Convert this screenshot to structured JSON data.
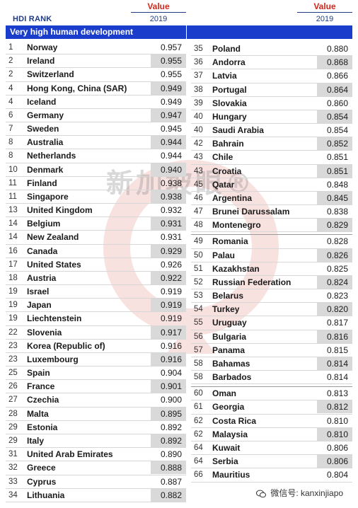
{
  "header": {
    "rank_label": "HDI RANK",
    "value_label": "Value",
    "year_label": "2019"
  },
  "section": {
    "title": "Very high human development"
  },
  "left_rows": [
    {
      "rank": "1",
      "country": "Norway",
      "value": "0.957",
      "shade": false
    },
    {
      "rank": "2",
      "country": "Ireland",
      "value": "0.955",
      "shade": true
    },
    {
      "rank": "2",
      "country": "Switzerland",
      "value": "0.955",
      "shade": false
    },
    {
      "rank": "4",
      "country": "Hong Kong, China (SAR)",
      "value": "0.949",
      "shade": true
    },
    {
      "rank": "4",
      "country": "Iceland",
      "value": "0.949",
      "shade": false
    },
    {
      "rank": "6",
      "country": "Germany",
      "value": "0.947",
      "shade": true
    },
    {
      "rank": "7",
      "country": "Sweden",
      "value": "0.945",
      "shade": false
    },
    {
      "rank": "8",
      "country": "Australia",
      "value": "0.944",
      "shade": true
    },
    {
      "rank": "8",
      "country": "Netherlands",
      "value": "0.944",
      "shade": false
    },
    {
      "rank": "10",
      "country": "Denmark",
      "value": "0.940",
      "shade": true
    },
    {
      "rank": "11",
      "country": "Finland",
      "value": "0.938",
      "shade": false
    },
    {
      "rank": "11",
      "country": "Singapore",
      "value": "0.938",
      "shade": true
    },
    {
      "rank": "13",
      "country": "United Kingdom",
      "value": "0.932",
      "shade": false
    },
    {
      "rank": "14",
      "country": "Belgium",
      "value": "0.931",
      "shade": true
    },
    {
      "rank": "14",
      "country": "New Zealand",
      "value": "0.931",
      "shade": false
    },
    {
      "rank": "16",
      "country": "Canada",
      "value": "0.929",
      "shade": true
    },
    {
      "rank": "17",
      "country": "United States",
      "value": "0.926",
      "shade": false
    },
    {
      "rank": "18",
      "country": "Austria",
      "value": "0.922",
      "shade": true
    },
    {
      "rank": "19",
      "country": "Israel",
      "value": "0.919",
      "shade": false
    },
    {
      "rank": "19",
      "country": "Japan",
      "value": "0.919",
      "shade": true
    },
    {
      "rank": "19",
      "country": "Liechtenstein",
      "value": "0.919",
      "shade": false
    },
    {
      "rank": "22",
      "country": "Slovenia",
      "value": "0.917",
      "shade": true
    },
    {
      "rank": "23",
      "country": "Korea (Republic of)",
      "value": "0.916",
      "shade": false
    },
    {
      "rank": "23",
      "country": "Luxembourg",
      "value": "0.916",
      "shade": true
    },
    {
      "rank": "25",
      "country": "Spain",
      "value": "0.904",
      "shade": false
    },
    {
      "rank": "26",
      "country": "France",
      "value": "0.901",
      "shade": true
    },
    {
      "rank": "27",
      "country": "Czechia",
      "value": "0.900",
      "shade": false
    },
    {
      "rank": "28",
      "country": "Malta",
      "value": "0.895",
      "shade": true
    },
    {
      "rank": "29",
      "country": "Estonia",
      "value": "0.892",
      "shade": false
    },
    {
      "rank": "29",
      "country": "Italy",
      "value": "0.892",
      "shade": true
    },
    {
      "rank": "31",
      "country": "United Arab Emirates",
      "value": "0.890",
      "shade": false
    },
    {
      "rank": "32",
      "country": "Greece",
      "value": "0.888",
      "shade": true
    },
    {
      "rank": "33",
      "country": "Cyprus",
      "value": "0.887",
      "shade": false
    },
    {
      "rank": "34",
      "country": "Lithuania",
      "value": "0.882",
      "shade": true
    }
  ],
  "right_rows_a": [
    {
      "rank": "35",
      "country": "Poland",
      "value": "0.880",
      "shade": false
    },
    {
      "rank": "36",
      "country": "Andorra",
      "value": "0.868",
      "shade": true
    },
    {
      "rank": "37",
      "country": "Latvia",
      "value": "0.866",
      "shade": false
    },
    {
      "rank": "38",
      "country": "Portugal",
      "value": "0.864",
      "shade": true
    },
    {
      "rank": "39",
      "country": "Slovakia",
      "value": "0.860",
      "shade": false
    },
    {
      "rank": "40",
      "country": "Hungary",
      "value": "0.854",
      "shade": true
    },
    {
      "rank": "40",
      "country": "Saudi Arabia",
      "value": "0.854",
      "shade": false
    },
    {
      "rank": "42",
      "country": "Bahrain",
      "value": "0.852",
      "shade": true
    },
    {
      "rank": "43",
      "country": "Chile",
      "value": "0.851",
      "shade": false
    },
    {
      "rank": "43",
      "country": "Croatia",
      "value": "0.851",
      "shade": true
    },
    {
      "rank": "45",
      "country": "Qatar",
      "value": "0.848",
      "shade": false
    },
    {
      "rank": "46",
      "country": "Argentina",
      "value": "0.845",
      "shade": true
    },
    {
      "rank": "47",
      "country": "Brunei Darussalam",
      "value": "0.838",
      "shade": false
    },
    {
      "rank": "48",
      "country": "Montenegro",
      "value": "0.829",
      "shade": true
    }
  ],
  "right_rows_b": [
    {
      "rank": "49",
      "country": "Romania",
      "value": "0.828",
      "shade": false
    },
    {
      "rank": "50",
      "country": "Palau",
      "value": "0.826",
      "shade": true
    },
    {
      "rank": "51",
      "country": "Kazakhstan",
      "value": "0.825",
      "shade": false
    },
    {
      "rank": "52",
      "country": "Russian Federation",
      "value": "0.824",
      "shade": true
    },
    {
      "rank": "53",
      "country": "Belarus",
      "value": "0.823",
      "shade": false
    },
    {
      "rank": "54",
      "country": "Turkey",
      "value": "0.820",
      "shade": true
    },
    {
      "rank": "55",
      "country": "Uruguay",
      "value": "0.817",
      "shade": false
    },
    {
      "rank": "56",
      "country": "Bulgaria",
      "value": "0.816",
      "shade": true
    },
    {
      "rank": "57",
      "country": "Panama",
      "value": "0.815",
      "shade": false
    },
    {
      "rank": "58",
      "country": "Bahamas",
      "value": "0.814",
      "shade": true
    },
    {
      "rank": "58",
      "country": "Barbados",
      "value": "0.814",
      "shade": false
    }
  ],
  "right_rows_c": [
    {
      "rank": "60",
      "country": "Oman",
      "value": "0.813",
      "shade": false
    },
    {
      "rank": "61",
      "country": "Georgia",
      "value": "0.812",
      "shade": true
    },
    {
      "rank": "62",
      "country": "Costa Rica",
      "value": "0.810",
      "shade": false
    },
    {
      "rank": "62",
      "country": "Malaysia",
      "value": "0.810",
      "shade": true
    },
    {
      "rank": "64",
      "country": "Kuwait",
      "value": "0.806",
      "shade": false
    },
    {
      "rank": "64",
      "country": "Serbia",
      "value": "0.806",
      "shade": true
    },
    {
      "rank": "66",
      "country": "Mauritius",
      "value": "0.804",
      "shade": false
    }
  ],
  "watermark": {
    "text": "新加坡眼®"
  },
  "credit": {
    "text": "微信号: kanxinjiapo",
    "icon": "wechat-icon"
  },
  "colors": {
    "banner": "#1a3ecb",
    "value_header": "#d0271d",
    "header_text": "#1f3b86",
    "shade": "#d9d9d9"
  }
}
